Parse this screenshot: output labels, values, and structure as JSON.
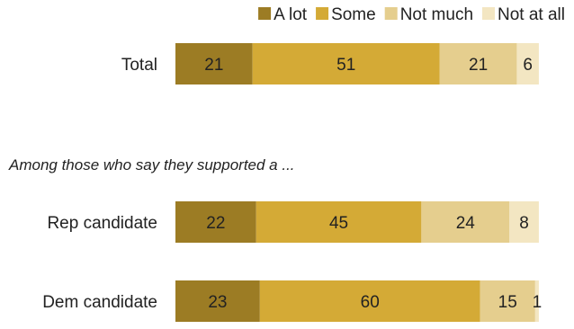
{
  "chart_data": {
    "type": "bar",
    "orientation": "horizontal",
    "stacked": true,
    "legend": {
      "placement": "top-right",
      "entries": [
        "A lot",
        "Some",
        "Not much",
        "Not at all"
      ]
    },
    "subtitle": "Among those who say they supported a ...",
    "categories": [
      "Total",
      "Rep candidate",
      "Dem candidate"
    ],
    "series": [
      {
        "name": "A lot",
        "color": "#9c7c24",
        "values": [
          21,
          22,
          23
        ]
      },
      {
        "name": "Some",
        "color": "#d4aa36",
        "values": [
          51,
          45,
          60
        ]
      },
      {
        "name": "Not much",
        "color": "#e5ce8e",
        "values": [
          21,
          24,
          15
        ]
      },
      {
        "name": "Not at all",
        "color": "#f3e6c2",
        "values": [
          6,
          8,
          1
        ]
      }
    ],
    "xlim": [
      0,
      100
    ],
    "grid": false
  }
}
